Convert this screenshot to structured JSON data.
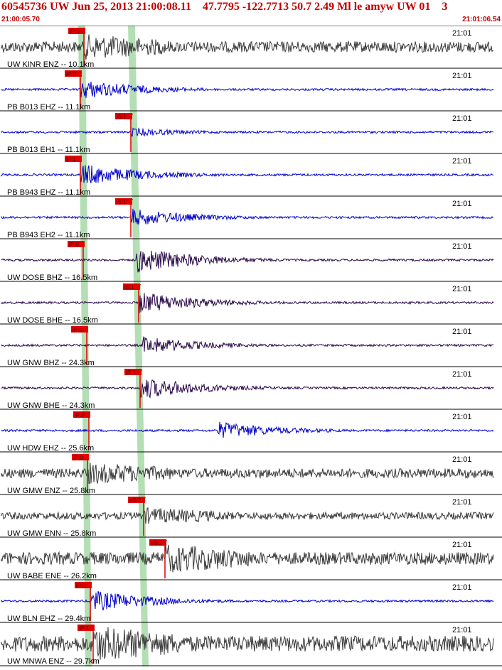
{
  "header": {
    "title": "60545736 UW Jun 25, 2013 21:00:08.11    47.7795 -122.7713 50.7 2.49 Ml le amyw UW 01    3",
    "time_start": "21:00:05.70",
    "time_end": "21:01:06.54"
  },
  "colors": {
    "title": "#c00000",
    "pick_box": "#e00000",
    "trace_gray": "#3a3a3a",
    "trace_blue": "#0000cc",
    "trace_purple": "#2a0a4a",
    "green_band": "#b4deb4"
  },
  "traces": [
    {
      "label": "UW KINR ENZ -- 10.1km",
      "color": "gray",
      "time_label": "21:01",
      "pick": "iP:1",
      "amp": 14
    },
    {
      "label": "PB B013 EHZ -- 11.1km",
      "color": "blue",
      "time_label": "21:01",
      "pick": "iP:0",
      "amp": 9
    },
    {
      "label": "PB B013 EH1 -- 11.1km",
      "color": "blue",
      "time_label": "21:01",
      "pick": "iS:1",
      "amp": 4
    },
    {
      "label": "PB B943 EHZ -- 11.1km",
      "color": "blue",
      "time_label": "21:01",
      "pick": "iP:1",
      "amp": 10
    },
    {
      "label": "PB B943 EH2 -- 11.1km",
      "color": "blue",
      "time_label": "21:01",
      "pick": "iS:1",
      "amp": 8
    },
    {
      "label": "UW DOSE BHZ -- 16.5km",
      "color": "purple",
      "time_label": "21:01",
      "pick": "iP:0",
      "amp": 12
    },
    {
      "label": "UW DOSE BHE -- 16.5km",
      "color": "purple",
      "time_label": "21:01",
      "pick": "iS:1",
      "amp": 10
    },
    {
      "label": "UW GNW BHZ -- 24.3km",
      "color": "purple",
      "time_label": "21:01",
      "pick": "iP:0",
      "amp": 8
    },
    {
      "label": "UW GNW BHE -- 24.3km",
      "color": "purple",
      "time_label": "21:01",
      "pick": "iS:1",
      "amp": 10
    },
    {
      "label": "UW HDW EHZ -- 25.6km",
      "color": "blue",
      "time_label": "21:01",
      "pick": "iP:0",
      "amp": 8
    },
    {
      "label": "UW GMW ENZ -- 25.8km",
      "color": "gray",
      "time_label": "21:01",
      "pick": "iP:0",
      "amp": 12
    },
    {
      "label": "UW GMW ENN -- 25.8km",
      "color": "gray",
      "time_label": "21:01",
      "pick": "eS:2",
      "amp": 9
    },
    {
      "label": "UW BABE ENE -- 26.2km",
      "color": "gray",
      "time_label": "21:01",
      "pick": "eS:2",
      "amp": 16
    },
    {
      "label": "UW BLN EHZ -- 29.4km",
      "color": "blue",
      "time_label": "21:01",
      "pick": "iP:0",
      "amp": 10
    },
    {
      "label": "UW MNWA ENZ -- 29.7km",
      "color": "gray",
      "time_label": "21:01",
      "pick": "iP:1",
      "amp": 20
    }
  ]
}
